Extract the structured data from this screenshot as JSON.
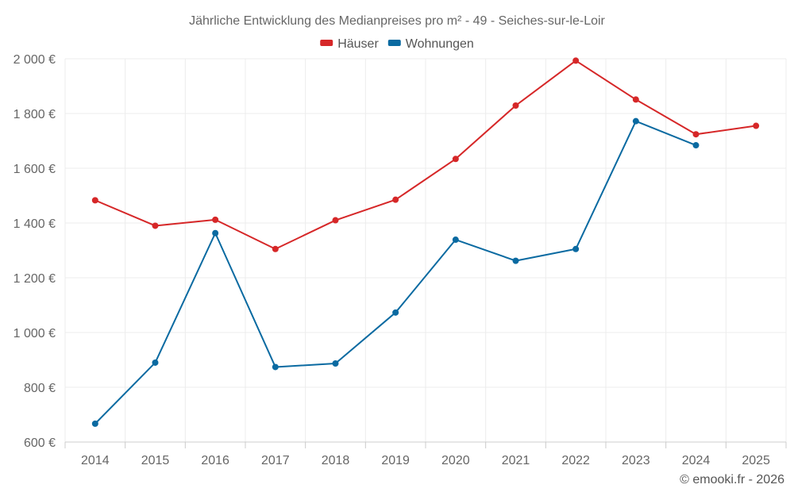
{
  "chart_data": {
    "type": "line",
    "title": "Jährliche Entwicklung des Medianpreises pro m² - 49 - Seiches-sur-le-Loir",
    "categories": [
      "2014",
      "2015",
      "2016",
      "2017",
      "2018",
      "2019",
      "2020",
      "2021",
      "2022",
      "2023",
      "2024",
      "2025"
    ],
    "series": [
      {
        "name": "Häuser",
        "color": "#d62728",
        "values": [
          1483,
          1390,
          1412,
          1305,
          1410,
          1485,
          1634,
          1829,
          1993,
          1851,
          1724,
          1755
        ]
      },
      {
        "name": "Wohnungen",
        "color": "#0a6aa1",
        "values": [
          667,
          890,
          1363,
          874,
          887,
          1073,
          1339,
          1262,
          1305,
          1772,
          1684,
          null
        ]
      }
    ],
    "ylim": [
      600,
      2000
    ],
    "yticks": [
      600,
      800,
      1000,
      1200,
      1400,
      1600,
      1800,
      2000
    ],
    "ytick_labels": [
      "600 €",
      "800 €",
      "1 000 €",
      "1 200 €",
      "1 400 €",
      "1 600 €",
      "1 800 €",
      "2 000 €"
    ],
    "xlabel": "",
    "ylabel": "",
    "grid": true,
    "legend_position": "top-center"
  },
  "credit": "© emooki.fr - 2026"
}
